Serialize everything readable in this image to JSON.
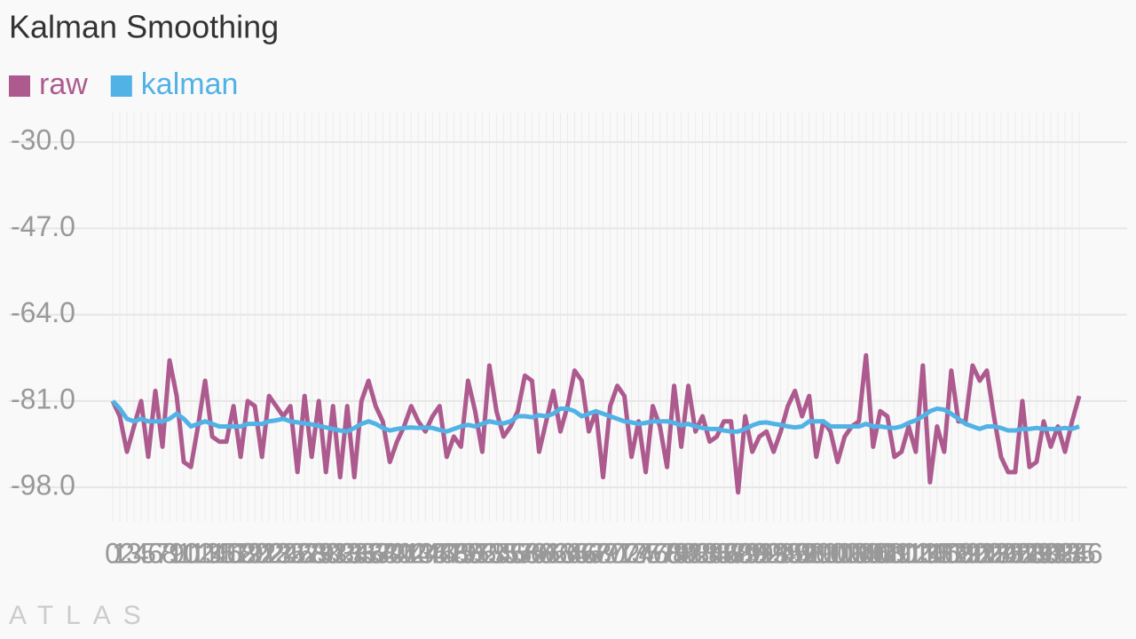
{
  "chart_data": {
    "type": "line",
    "title": "Kalman Smoothing",
    "footer": "ATLAS",
    "categories": [
      "0",
      "1",
      "2",
      "3",
      "4",
      "5",
      "6",
      "7",
      "8",
      "9",
      "10",
      "11",
      "12",
      "13",
      "14",
      "15",
      "16",
      "17",
      "18",
      "19",
      "20",
      "21",
      "22",
      "23",
      "24",
      "25",
      "26",
      "27",
      "28",
      "29",
      "30",
      "31",
      "32",
      "33",
      "34",
      "35",
      "36",
      "37",
      "38",
      "39",
      "40",
      "41",
      "42",
      "43",
      "44",
      "45",
      "46",
      "47",
      "48",
      "49",
      "50",
      "51",
      "52",
      "53",
      "54",
      "55",
      "56",
      "57",
      "58",
      "59",
      "60",
      "61",
      "62",
      "63",
      "64",
      "65",
      "66",
      "67",
      "68",
      "69",
      "70",
      "71",
      "72",
      "73",
      "74",
      "75",
      "76",
      "77",
      "78",
      "79",
      "80",
      "81",
      "82",
      "83",
      "84",
      "85",
      "86",
      "87",
      "88",
      "89",
      "90",
      "91",
      "92",
      "93",
      "94",
      "95",
      "96",
      "97",
      "98",
      "99",
      "100",
      "101",
      "102",
      "103",
      "104",
      "105",
      "106",
      "107",
      "108",
      "109",
      "110",
      "111",
      "112",
      "113",
      "114",
      "115",
      "116",
      "117",
      "118",
      "119",
      "120",
      "121",
      "122",
      "123",
      "124",
      "125",
      "126",
      "127",
      "128",
      "129",
      "130",
      "131",
      "132",
      "133",
      "134",
      "135",
      "136"
    ],
    "series": [
      {
        "name": "raw",
        "color": "#ad5b8f",
        "values": [
          -81,
          -84,
          -91,
          -86,
          -81,
          -92,
          -79,
          -90,
          -73,
          -80,
          -93,
          -94,
          -86,
          -77,
          -88,
          -89,
          -89,
          -82,
          -92,
          -81,
          -82,
          -92,
          -80,
          -82,
          -84,
          -82,
          -95,
          -80,
          -92,
          -81,
          -95,
          -82,
          -96,
          -82,
          -96,
          -81,
          -77,
          -82,
          -85,
          -93,
          -89,
          -86,
          -82,
          -85,
          -87,
          -84,
          -82,
          -92,
          -88,
          -90,
          -77,
          -83,
          -91,
          -74,
          -83,
          -88,
          -86,
          -83,
          -76,
          -77,
          -91,
          -85,
          -79,
          -87,
          -82,
          -75,
          -77,
          -87,
          -83,
          -96,
          -82,
          -78,
          -80,
          -92,
          -85,
          -95,
          -82,
          -86,
          -94,
          -78,
          -90,
          -78,
          -87,
          -84,
          -89,
          -88,
          -85,
          -85,
          -99,
          -84,
          -91,
          -88,
          -87,
          -91,
          -87,
          -82,
          -79,
          -84,
          -80,
          -92,
          -85,
          -87,
          -93,
          -88,
          -86,
          -85,
          -72,
          -90,
          -83,
          -84,
          -92,
          -91,
          -86,
          -91,
          -74,
          -97,
          -86,
          -91,
          -75,
          -85,
          -85,
          -74,
          -77,
          -75,
          -84,
          -92,
          -95,
          -95,
          -81,
          -94,
          -93,
          -85,
          -90,
          -86,
          -91,
          -85,
          -80
        ]
      },
      {
        "name": "kalman",
        "color": "#51b2e5",
        "values": [
          -81,
          -82.5,
          -84.5,
          -85,
          -84.5,
          -85,
          -85,
          -85,
          -84.5,
          -83.5,
          -84.5,
          -86,
          -85.5,
          -85,
          -85.5,
          -86,
          -86,
          -86,
          -86,
          -85.5,
          -85.5,
          -85.5,
          -85,
          -84.8,
          -84.5,
          -85,
          -85.2,
          -85.4,
          -85.6,
          -85.9,
          -86.2,
          -86.5,
          -86.8,
          -87,
          -86.3,
          -85.5,
          -85,
          -85.5,
          -86.3,
          -86.8,
          -86.5,
          -86.3,
          -86.2,
          -86.3,
          -86.2,
          -86.3,
          -86.7,
          -87,
          -86.5,
          -86,
          -85.7,
          -86,
          -85.5,
          -85,
          -85.3,
          -85.4,
          -85,
          -84,
          -84,
          -84.2,
          -83.8,
          -84,
          -83.5,
          -82.5,
          -82.5,
          -83,
          -84,
          -83.5,
          -83,
          -83.5,
          -84,
          -84.5,
          -85,
          -85.2,
          -85.5,
          -85.3,
          -85,
          -85,
          -85,
          -85.3,
          -85.8,
          -85.5,
          -86,
          -86.3,
          -86.5,
          -86.5,
          -86.8,
          -87,
          -87,
          -86.5,
          -85.8,
          -85.3,
          -85.2,
          -85.5,
          -85.7,
          -86,
          -86.2,
          -86,
          -85,
          -85,
          -85,
          -86,
          -86,
          -86,
          -86,
          -86,
          -85.5,
          -86,
          -86,
          -86.2,
          -86.3,
          -86,
          -85.3,
          -84.8,
          -84,
          -83,
          -82.5,
          -82.7,
          -83.5,
          -84.5,
          -85.5,
          -86,
          -86.5,
          -86,
          -86,
          -86.3,
          -86.8,
          -86.8,
          -86.5,
          -86.5,
          -86.3,
          -86.5,
          -86.5,
          -86.5,
          -86.3,
          -86.5,
          -86
        ]
      }
    ],
    "ylim": [
      -104.8,
      -24.2
    ],
    "yticks": [
      {
        "value": -98,
        "label": "-98.0"
      },
      {
        "value": -81,
        "label": "-81.0"
      },
      {
        "value": -64,
        "label": "-64.0"
      },
      {
        "value": -47,
        "label": "-47.0"
      },
      {
        "value": -30,
        "label": "-30.0"
      }
    ],
    "grid": true
  }
}
